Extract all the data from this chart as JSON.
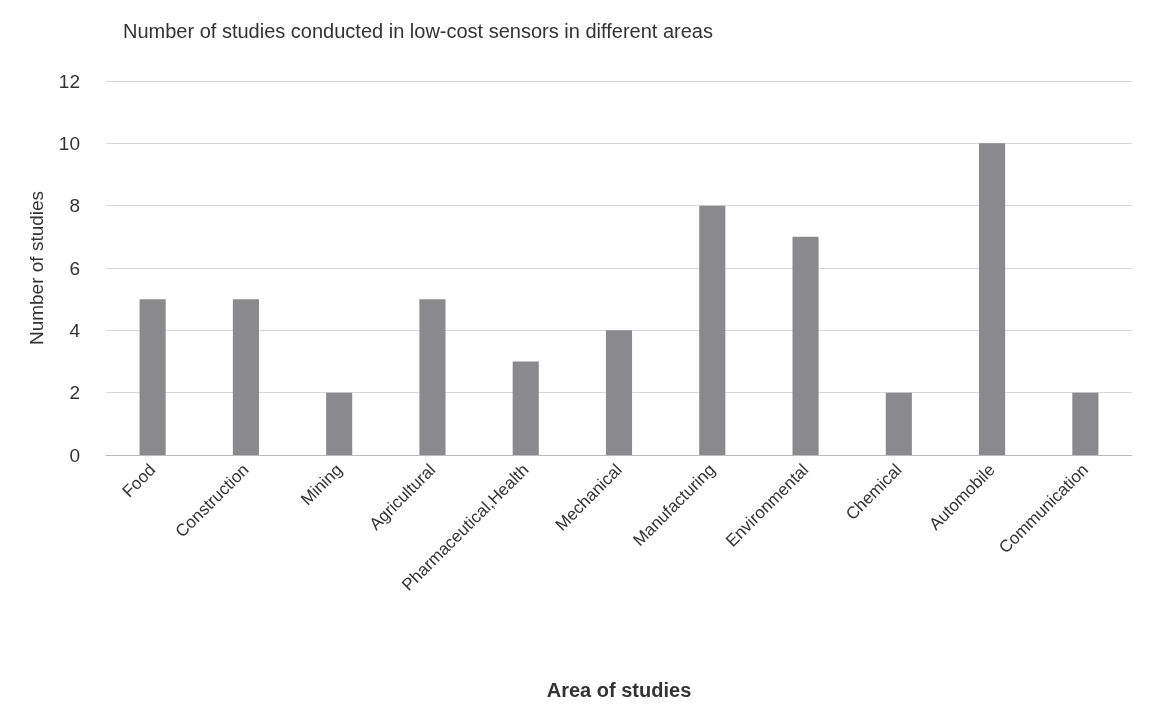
{
  "chart_data": {
    "type": "bar",
    "title": "Number of studies conducted in low-cost sensors in different areas",
    "xlabel": "Area of studies",
    "ylabel": "Number of studies",
    "categories": [
      "Food",
      "Construction",
      "Mining",
      "Agricultural",
      "Pharmaceutical,Health",
      "Mechanical",
      "Manufacturing",
      "Environmental",
      "Chemical",
      "Automobile",
      "Communication"
    ],
    "values": [
      5,
      5,
      2,
      5,
      3,
      4,
      8,
      7,
      2,
      10,
      2
    ],
    "color": "#8a8a8c",
    "ylim": [
      0,
      12
    ],
    "yticks": [
      0,
      2,
      4,
      6,
      8,
      10,
      12
    ],
    "grid": "y"
  }
}
